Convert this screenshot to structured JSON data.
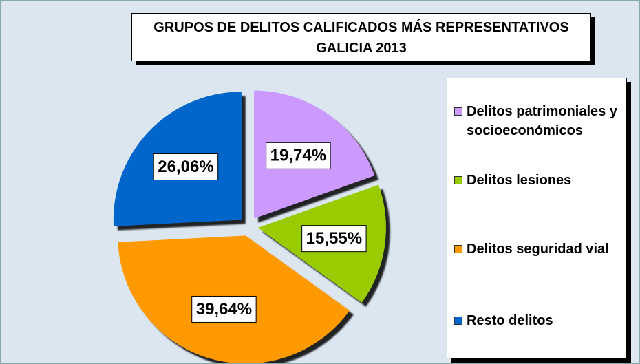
{
  "chart_data": {
    "type": "pie",
    "title": "GRUPOS DE DELITOS CALIFICADOS MÁS REPRESENTATIVOS",
    "subtitle": "GALICIA 2013",
    "categories": [
      "Delitos patrimoniales y socioeconómicos",
      "Delitos lesiones",
      "Delitos seguridad vial",
      "Resto delitos"
    ],
    "values": [
      19.74,
      15.55,
      39.64,
      26.06
    ],
    "value_labels": [
      "19,74%",
      "15,55%",
      "39,64%",
      "26,06%"
    ],
    "colors": [
      "#cc99ff",
      "#99cc00",
      "#ff9900",
      "#0066cc"
    ],
    "legend": "right"
  }
}
